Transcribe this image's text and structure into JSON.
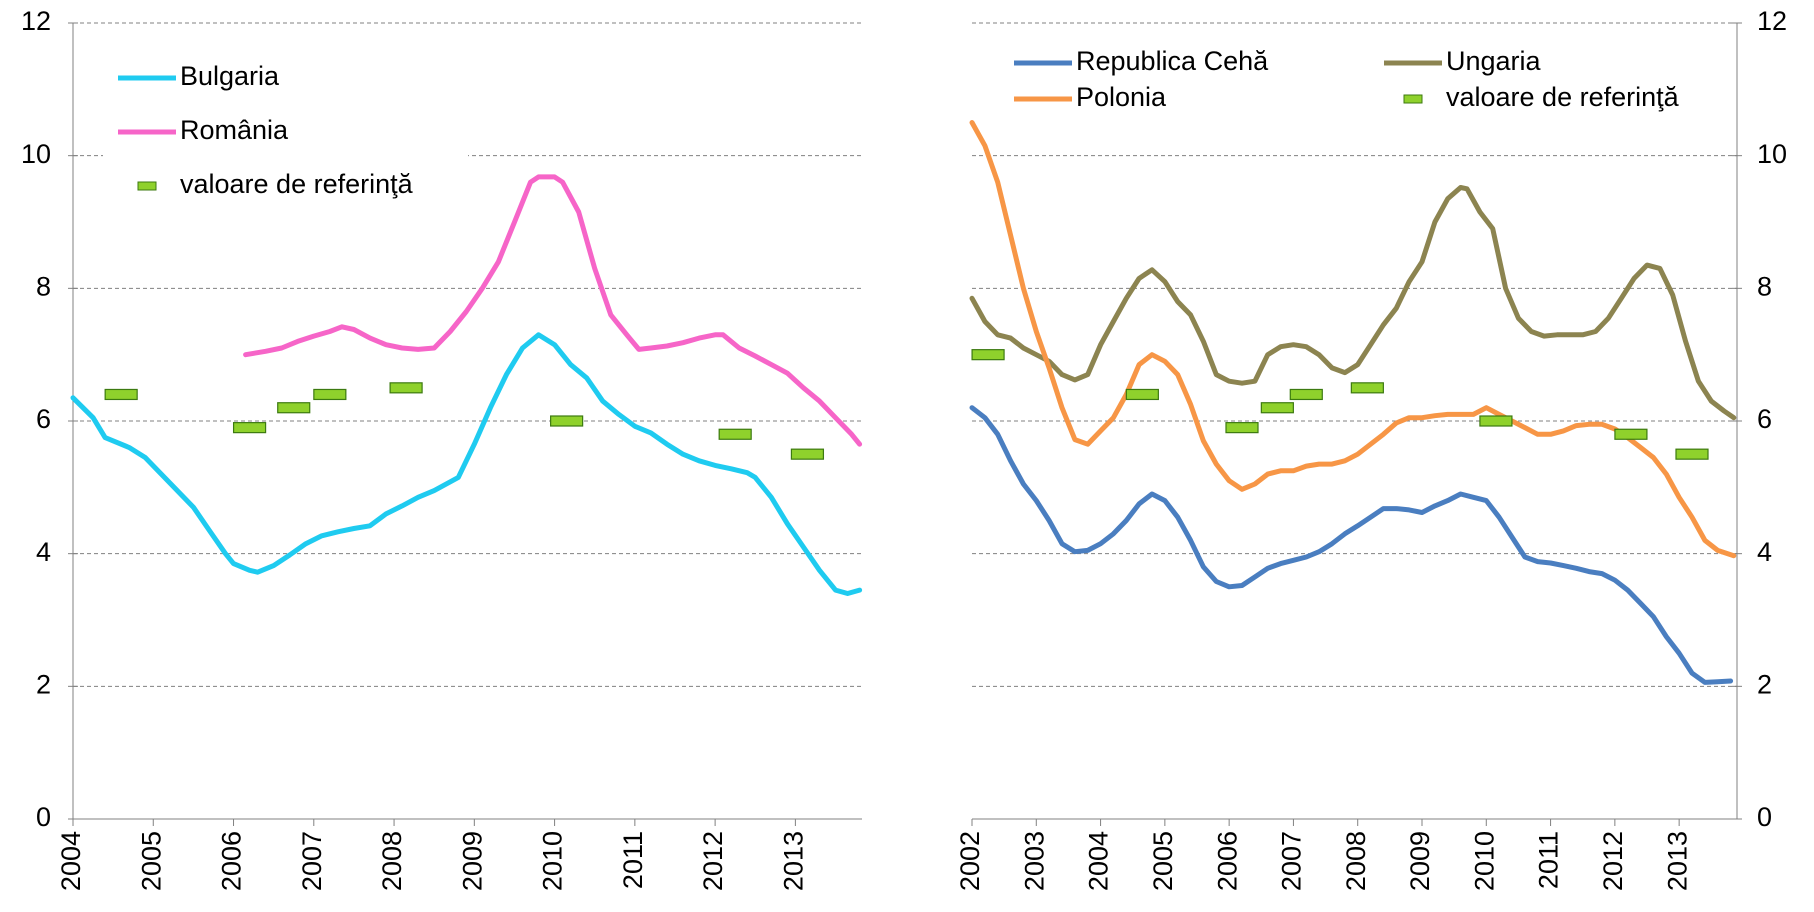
{
  "chart_data": [
    {
      "type": "line",
      "legend": "upper left",
      "y_axis_side": "left",
      "grid": true,
      "xlim": [
        2004,
        2013.83
      ],
      "xticks": [
        2004,
        2005,
        2006,
        2007,
        2008,
        2009,
        2010,
        2011,
        2012,
        2013
      ],
      "ylim": [
        0,
        12
      ],
      "yticks": [
        0,
        2,
        4,
        6,
        8,
        10,
        12
      ],
      "series": [
        {
          "name": "Bulgaria",
          "color": "#1fcbf0",
          "x": [
            2004.0,
            2004.25,
            2004.4,
            2004.7,
            2004.9,
            2005.1,
            2005.3,
            2005.5,
            2005.7,
            2005.9,
            2006.0,
            2006.2,
            2006.3,
            2006.5,
            2006.7,
            2006.9,
            2007.1,
            2007.3,
            2007.5,
            2007.7,
            2007.9,
            2008.1,
            2008.3,
            2008.5,
            2008.8,
            2009.0,
            2009.2,
            2009.4,
            2009.6,
            2009.8,
            2010.0,
            2010.2,
            2010.4,
            2010.6,
            2010.8,
            2011.0,
            2011.2,
            2011.4,
            2011.6,
            2011.8,
            2012.0,
            2012.2,
            2012.4,
            2012.5,
            2012.7,
            2012.9,
            2013.1,
            2013.3,
            2013.5,
            2013.65,
            2013.8
          ],
          "values": [
            6.35,
            6.05,
            5.75,
            5.6,
            5.45,
            5.2,
            4.95,
            4.7,
            4.35,
            4.0,
            3.85,
            3.75,
            3.72,
            3.82,
            3.98,
            4.15,
            4.27,
            4.33,
            4.38,
            4.42,
            4.6,
            4.72,
            4.85,
            4.95,
            5.15,
            5.65,
            6.2,
            6.7,
            7.1,
            7.3,
            7.15,
            6.85,
            6.65,
            6.3,
            6.1,
            5.92,
            5.82,
            5.65,
            5.5,
            5.4,
            5.33,
            5.28,
            5.22,
            5.15,
            4.85,
            4.45,
            4.1,
            3.75,
            3.45,
            3.4,
            3.45
          ]
        },
        {
          "name": "România",
          "color": "#f665c8",
          "x": [
            2006.15,
            2006.4,
            2006.6,
            2006.8,
            2007.0,
            2007.2,
            2007.35,
            2007.5,
            2007.7,
            2007.9,
            2008.1,
            2008.3,
            2008.5,
            2008.7,
            2008.9,
            2009.1,
            2009.3,
            2009.5,
            2009.7,
            2009.8,
            2010.0,
            2010.1,
            2010.3,
            2010.5,
            2010.7,
            2010.9,
            2011.05,
            2011.2,
            2011.4,
            2011.6,
            2011.8,
            2012.0,
            2012.1,
            2012.3,
            2012.5,
            2012.7,
            2012.9,
            2013.1,
            2013.3,
            2013.5,
            2013.7,
            2013.8
          ],
          "values": [
            7.0,
            7.05,
            7.1,
            7.2,
            7.28,
            7.35,
            7.42,
            7.38,
            7.25,
            7.15,
            7.1,
            7.08,
            7.1,
            7.35,
            7.65,
            8.0,
            8.4,
            9.0,
            9.6,
            9.68,
            9.68,
            9.6,
            9.15,
            8.3,
            7.6,
            7.3,
            7.08,
            7.1,
            7.13,
            7.18,
            7.25,
            7.3,
            7.3,
            7.1,
            6.98,
            6.85,
            6.72,
            6.5,
            6.3,
            6.05,
            5.8,
            5.65
          ]
        },
        {
          "name": "valoare de referinţă",
          "color": "#8fd12c",
          "style": "marker",
          "x": [
            2004.6,
            2006.2,
            2006.75,
            2007.2,
            2008.15,
            2010.15,
            2012.25,
            2013.15
          ],
          "values": [
            6.4,
            5.9,
            6.2,
            6.4,
            6.5,
            6.0,
            5.8,
            5.5
          ]
        }
      ]
    },
    {
      "type": "line",
      "legend": "upper center",
      "y_axis_side": "right",
      "grid": true,
      "xlim": [
        2002,
        2013.9
      ],
      "xticks": [
        2002,
        2003,
        2004,
        2005,
        2006,
        2007,
        2008,
        2009,
        2010,
        2011,
        2012,
        2013
      ],
      "ylim": [
        0,
        12
      ],
      "yticks": [
        0,
        2,
        4,
        6,
        8,
        10,
        12
      ],
      "series": [
        {
          "name": "Republica Cehă",
          "color": "#4a7ec0",
          "x": [
            2002.0,
            2002.2,
            2002.4,
            2002.6,
            2002.8,
            2003.0,
            2003.2,
            2003.4,
            2003.6,
            2003.8,
            2004.0,
            2004.2,
            2004.4,
            2004.6,
            2004.8,
            2005.0,
            2005.2,
            2005.4,
            2005.6,
            2005.8,
            2006.0,
            2006.2,
            2006.4,
            2006.6,
            2006.8,
            2007.0,
            2007.2,
            2007.4,
            2007.6,
            2007.8,
            2008.0,
            2008.2,
            2008.4,
            2008.6,
            2008.8,
            2009.0,
            2009.2,
            2009.4,
            2009.6,
            2009.8,
            2010.0,
            2010.2,
            2010.4,
            2010.6,
            2010.8,
            2011.0,
            2011.2,
            2011.4,
            2011.6,
            2011.8,
            2012.0,
            2012.2,
            2012.4,
            2012.6,
            2012.8,
            2013.0,
            2013.2,
            2013.4,
            2013.6,
            2013.8
          ],
          "values": [
            6.2,
            6.05,
            5.8,
            5.4,
            5.05,
            4.8,
            4.5,
            4.15,
            4.03,
            4.05,
            4.15,
            4.3,
            4.5,
            4.75,
            4.9,
            4.8,
            4.55,
            4.2,
            3.8,
            3.58,
            3.5,
            3.52,
            3.65,
            3.78,
            3.85,
            3.9,
            3.95,
            4.03,
            4.15,
            4.3,
            4.42,
            4.55,
            4.68,
            4.68,
            4.66,
            4.62,
            4.72,
            4.8,
            4.9,
            4.85,
            4.8,
            4.55,
            4.25,
            3.95,
            3.88,
            3.86,
            3.82,
            3.78,
            3.73,
            3.7,
            3.6,
            3.45,
            3.25,
            3.05,
            2.75,
            2.5,
            2.2,
            2.06,
            2.07,
            2.08
          ]
        },
        {
          "name": "Ungaria",
          "color": "#8c8450",
          "x": [
            2002.0,
            2002.2,
            2002.4,
            2002.6,
            2002.8,
            2003.0,
            2003.2,
            2003.4,
            2003.6,
            2003.8,
            2004.0,
            2004.2,
            2004.4,
            2004.6,
            2004.8,
            2005.0,
            2005.2,
            2005.4,
            2005.6,
            2005.8,
            2006.0,
            2006.2,
            2006.4,
            2006.6,
            2006.8,
            2007.0,
            2007.2,
            2007.4,
            2007.6,
            2007.8,
            2008.0,
            2008.2,
            2008.4,
            2008.6,
            2008.8,
            2009.0,
            2009.2,
            2009.4,
            2009.6,
            2009.7,
            2009.9,
            2010.1,
            2010.3,
            2010.5,
            2010.7,
            2010.9,
            2011.1,
            2011.3,
            2011.5,
            2011.7,
            2011.9,
            2012.1,
            2012.3,
            2012.5,
            2012.7,
            2012.9,
            2013.1,
            2013.3,
            2013.5,
            2013.7,
            2013.85
          ],
          "values": [
            7.85,
            7.5,
            7.3,
            7.25,
            7.1,
            7.0,
            6.9,
            6.7,
            6.62,
            6.7,
            7.15,
            7.5,
            7.85,
            8.15,
            8.28,
            8.1,
            7.8,
            7.6,
            7.2,
            6.7,
            6.6,
            6.57,
            6.6,
            7.0,
            7.12,
            7.15,
            7.12,
            7.0,
            6.8,
            6.73,
            6.85,
            7.15,
            7.45,
            7.7,
            8.1,
            8.4,
            9.0,
            9.35,
            9.52,
            9.5,
            9.15,
            8.9,
            8.0,
            7.55,
            7.35,
            7.28,
            7.3,
            7.3,
            7.3,
            7.35,
            7.55,
            7.85,
            8.15,
            8.35,
            8.3,
            7.9,
            7.2,
            6.6,
            6.3,
            6.15,
            6.05
          ]
        },
        {
          "name": "Polonia",
          "color": "#f79646",
          "x": [
            2002.0,
            2002.2,
            2002.4,
            2002.6,
            2002.8,
            2003.0,
            2003.2,
            2003.4,
            2003.6,
            2003.8,
            2004.0,
            2004.2,
            2004.4,
            2004.6,
            2004.8,
            2005.0,
            2005.2,
            2005.4,
            2005.6,
            2005.8,
            2006.0,
            2006.2,
            2006.4,
            2006.6,
            2006.8,
            2007.0,
            2007.2,
            2007.4,
            2007.6,
            2007.8,
            2008.0,
            2008.2,
            2008.4,
            2008.6,
            2008.8,
            2009.0,
            2009.2,
            2009.4,
            2009.6,
            2009.8,
            2010.0,
            2010.2,
            2010.4,
            2010.6,
            2010.8,
            2011.0,
            2011.2,
            2011.4,
            2011.6,
            2011.8,
            2012.0,
            2012.2,
            2012.4,
            2012.6,
            2012.8,
            2013.0,
            2013.2,
            2013.4,
            2013.6,
            2013.85
          ],
          "values": [
            10.5,
            10.15,
            9.6,
            8.8,
            8.0,
            7.35,
            6.8,
            6.2,
            5.72,
            5.65,
            5.85,
            6.05,
            6.4,
            6.85,
            7.0,
            6.9,
            6.7,
            6.25,
            5.7,
            5.35,
            5.1,
            4.97,
            5.05,
            5.2,
            5.25,
            5.25,
            5.32,
            5.35,
            5.35,
            5.4,
            5.5,
            5.65,
            5.8,
            5.97,
            6.05,
            6.05,
            6.08,
            6.1,
            6.1,
            6.1,
            6.2,
            6.1,
            6.0,
            5.9,
            5.8,
            5.8,
            5.85,
            5.93,
            5.95,
            5.95,
            5.88,
            5.75,
            5.6,
            5.45,
            5.2,
            4.85,
            4.55,
            4.2,
            4.05,
            3.97
          ]
        },
        {
          "name": "valoare de referinţă",
          "color": "#8fd12c",
          "style": "marker",
          "x": [
            2002.25,
            2004.65,
            2006.2,
            2006.75,
            2007.2,
            2008.15,
            2010.15,
            2012.25,
            2013.2
          ],
          "values": [
            7.0,
            6.4,
            5.9,
            6.2,
            6.4,
            6.5,
            6.0,
            5.8,
            5.5
          ]
        }
      ]
    }
  ]
}
